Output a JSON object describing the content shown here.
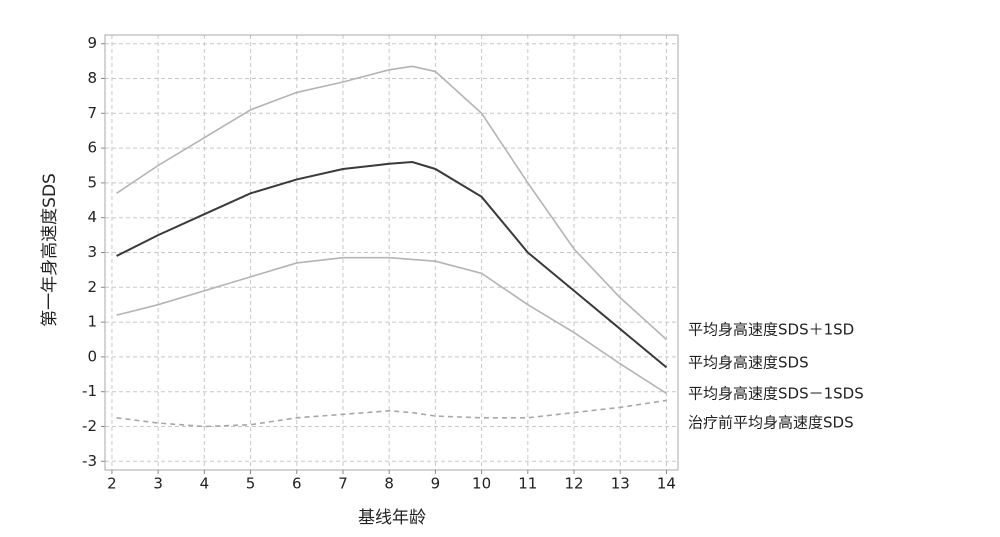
{
  "chart_data": {
    "type": "line",
    "x_label": "基线年龄",
    "y_label": "第一年身高速度SDS",
    "x": [
      2.1,
      3,
      4,
      5,
      6,
      7,
      8,
      8.5,
      9,
      10,
      11,
      12,
      13,
      14
    ],
    "series": [
      {
        "name": "平均身高速度SDS＋1SD",
        "color": "#b4b4b4",
        "dashed": false,
        "values": [
          4.7,
          5.5,
          6.3,
          7.1,
          7.6,
          7.9,
          8.25,
          8.35,
          8.2,
          7.0,
          5.0,
          3.1,
          1.7,
          0.5
        ]
      },
      {
        "name": "平均身高速度SDS",
        "color": "#3a3a3a",
        "dashed": false,
        "values": [
          2.9,
          3.5,
          4.1,
          4.7,
          5.1,
          5.4,
          5.55,
          5.6,
          5.4,
          4.6,
          3.0,
          1.9,
          0.8,
          -0.3
        ]
      },
      {
        "name": "平均身高速度SDS－1SDS",
        "color": "#b4b4b4",
        "dashed": false,
        "values": [
          1.2,
          1.5,
          1.9,
          2.3,
          2.7,
          2.85,
          2.85,
          2.8,
          2.75,
          2.4,
          1.5,
          0.7,
          -0.2,
          -1.05
        ]
      },
      {
        "name": "治疗前平均身高速度SDS",
        "color": "#a8a8a8",
        "dashed": true,
        "values": [
          -1.75,
          -1.9,
          -2.0,
          -1.95,
          -1.75,
          -1.65,
          -1.55,
          -1.6,
          -1.7,
          -1.75,
          -1.75,
          -1.6,
          -1.45,
          -1.25
        ]
      }
    ],
    "xlim": [
      1.85,
      14.25
    ],
    "xticks": [
      2,
      3,
      4,
      5,
      6,
      7,
      8,
      9,
      10,
      11,
      12,
      13,
      14
    ],
    "ylim": [
      -3.25,
      9.25
    ],
    "yticks": [
      -3,
      -2,
      -1,
      0,
      1,
      2,
      3,
      4,
      5,
      6,
      7,
      8,
      9
    ],
    "grid": true
  }
}
